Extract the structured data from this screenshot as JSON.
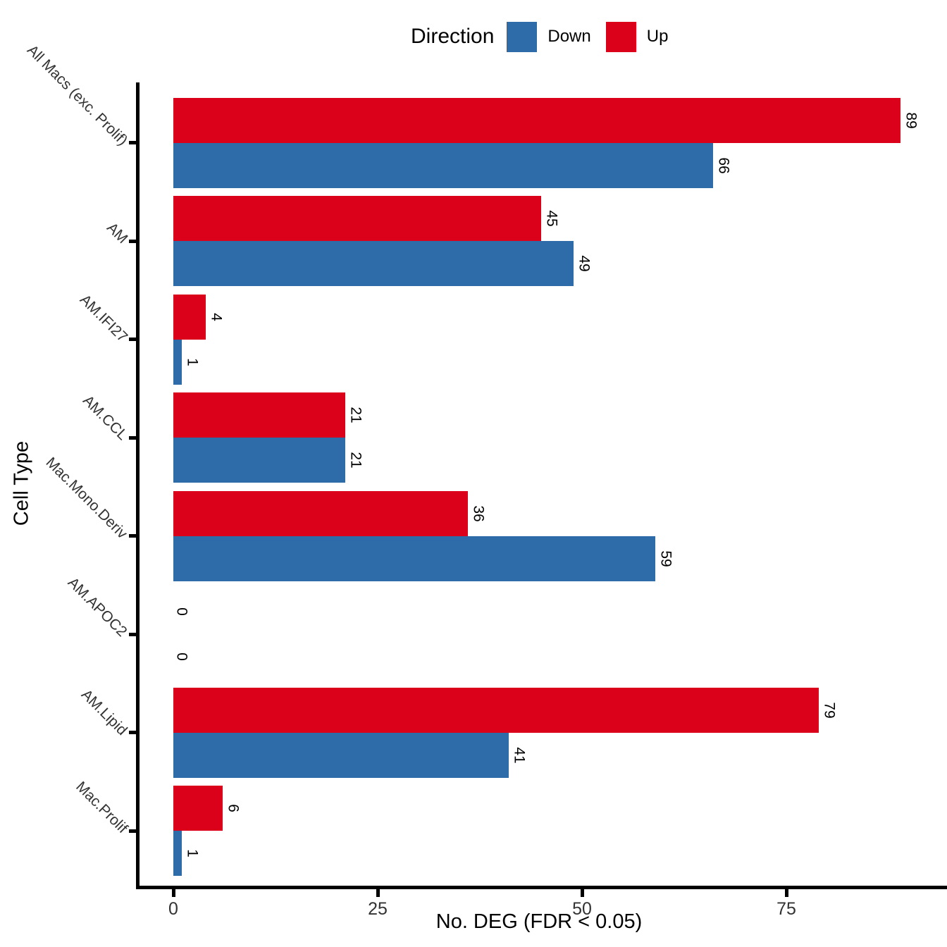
{
  "figure": {
    "legend": {
      "title": "Direction",
      "items": [
        {
          "label": "Down",
          "color": "#2E6BA9"
        },
        {
          "label": "Up",
          "color": "#DB011A"
        }
      ]
    },
    "x_axis": {
      "title": "No. DEG (FDR < 0.05)"
    },
    "y_axis": {
      "title": "Cell Type"
    }
  },
  "colors": {
    "up": "#DB011A",
    "down": "#2E6BA9",
    "axis_line": "#000000",
    "tick_text": "#333333",
    "value_text": "#000000"
  },
  "chart_data": {
    "type": "bar",
    "orientation": "horizontal",
    "title": "",
    "xlabel": "No. DEG (FDR < 0.05)",
    "ylabel": "Cell Type",
    "x_ticks": [
      0,
      25,
      50,
      75
    ],
    "xlim": [
      0,
      94
    ],
    "grid": false,
    "legend_position": "top",
    "bar_value_labels": true,
    "categories": [
      "All Macs (exc. Prolif)",
      "AM",
      "AM.IFI27",
      "AM.CCL",
      "Mac.Mono.Deriv",
      "AM.APOC2",
      "AM.Lipid",
      "Mac.Prolif"
    ],
    "series": [
      {
        "name": "Up",
        "color": "#DB011A",
        "values": [
          89,
          45,
          4,
          21,
          36,
          0,
          79,
          6
        ]
      },
      {
        "name": "Down",
        "color": "#2E6BA9",
        "values": [
          66,
          49,
          1,
          21,
          59,
          0,
          41,
          1
        ]
      }
    ]
  }
}
